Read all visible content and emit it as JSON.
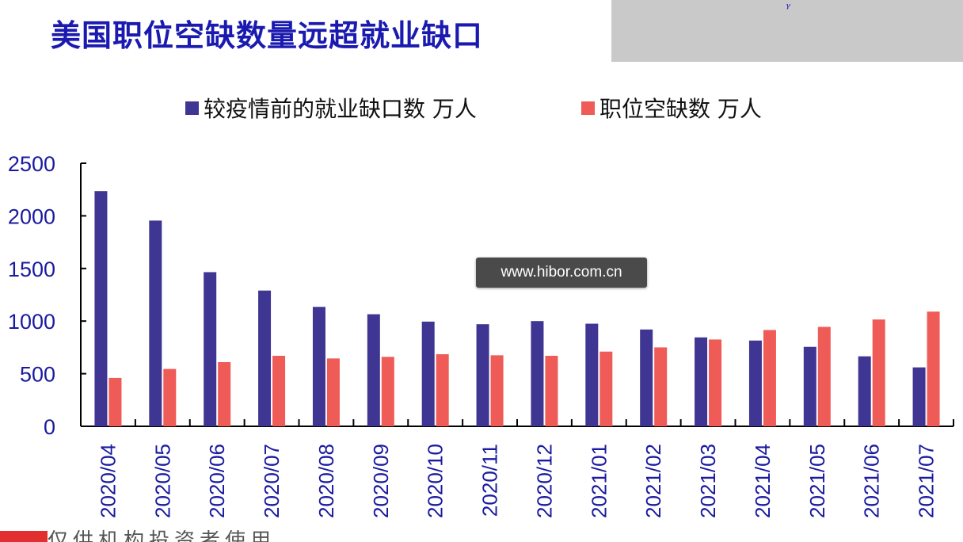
{
  "title": "美国职位空缺数量远超就业缺口",
  "watermark": "www.hibor.com.cn",
  "footer_text": "仅供机构投资者使用",
  "chart_data": {
    "type": "bar",
    "categories": [
      "2020/04",
      "2020/05",
      "2020/06",
      "2020/07",
      "2020/08",
      "2020/09",
      "2020/10",
      "2020/11",
      "2020/12",
      "2021/01",
      "2021/02",
      "2021/03",
      "2021/04",
      "2021/05",
      "2021/06",
      "2021/07"
    ],
    "series": [
      {
        "name": "较疫情前的就业缺口数 万人",
        "color": "#3f3592",
        "values": [
          2235,
          1955,
          1465,
          1290,
          1135,
          1065,
          995,
          970,
          1000,
          975,
          920,
          845,
          815,
          755,
          665,
          560
        ]
      },
      {
        "name": "职位空缺数 万人",
        "color": "#ef5b56",
        "values": [
          460,
          545,
          610,
          670,
          645,
          660,
          685,
          675,
          670,
          710,
          750,
          825,
          915,
          945,
          1015,
          1090
        ]
      }
    ],
    "ylim": [
      0,
      2500
    ],
    "yticks": [
      0,
      500,
      1000,
      1500,
      2000,
      2500
    ],
    "legend_position": "top"
  }
}
